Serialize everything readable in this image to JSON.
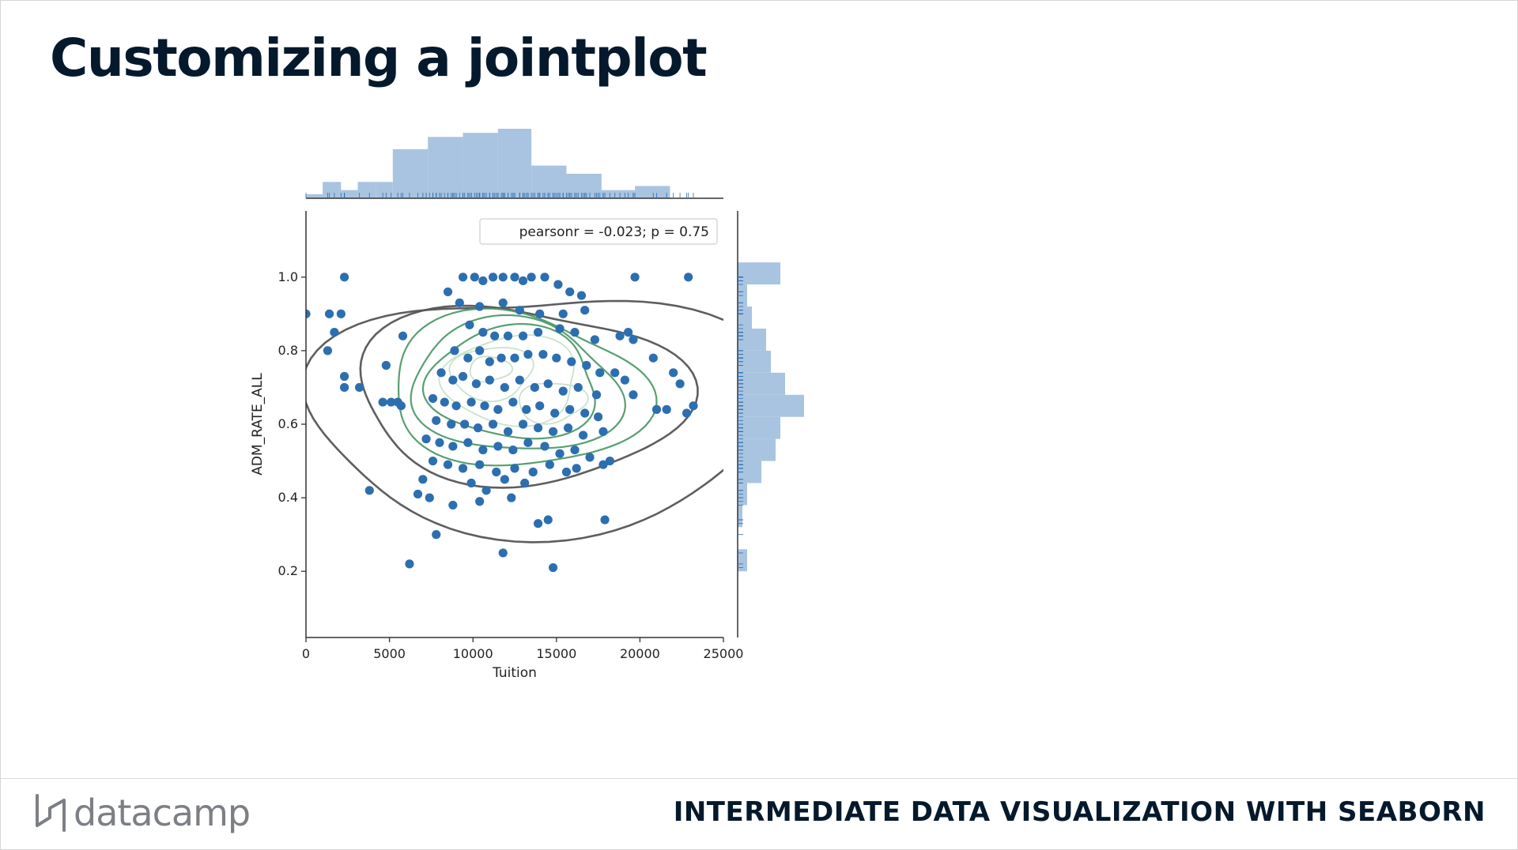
{
  "slide": {
    "title": "Customizing a jointplot",
    "brand": "datacamp",
    "course": "INTERMEDIATE DATA VISUALIZATION WITH SEABORN"
  },
  "colors": {
    "title": "#05192d",
    "point": "#2c6fb0",
    "hist": "#a9c4e0",
    "contour_dark": "#555555",
    "contour_green": "#4f9a68",
    "contour_light": "#c5e2c8",
    "brand_gray": "#7c7f85"
  },
  "chart_data": {
    "type": "scatter",
    "overlay": "kde-contour",
    "marginals": "histogram-with-rug",
    "title": "",
    "xlabel": "Tuition",
    "ylabel": "ADM_RATE_ALL",
    "xlim": [
      0,
      25000
    ],
    "ylim": [
      0.02,
      1.18
    ],
    "xticks": [
      "0",
      "5000",
      "10000",
      "15000",
      "20000",
      "25000"
    ],
    "yticks": [
      "0.2",
      "0.4",
      "0.6",
      "0.8",
      "1.0"
    ],
    "annotation": "pearsonr = -0.023; p = 0.75",
    "points": [
      [
        2300,
        1.0
      ],
      [
        1400,
        0.9
      ],
      [
        2100,
        0.9
      ],
      [
        1700,
        0.85
      ],
      [
        0,
        0.9
      ],
      [
        1300,
        0.8
      ],
      [
        2300,
        0.73
      ],
      [
        2300,
        0.7
      ],
      [
        3200,
        0.7
      ],
      [
        5800,
        0.84
      ],
      [
        4800,
        0.76
      ],
      [
        5100,
        0.66
      ],
      [
        4600,
        0.66
      ],
      [
        5500,
        0.66
      ],
      [
        5700,
        0.65
      ],
      [
        3800,
        0.42
      ],
      [
        6200,
        0.22
      ],
      [
        6700,
        0.41
      ],
      [
        7400,
        0.4
      ],
      [
        7800,
        0.3
      ],
      [
        8800,
        0.38
      ],
      [
        10400,
        0.39
      ],
      [
        11800,
        0.25
      ],
      [
        12300,
        0.4
      ],
      [
        13900,
        0.33
      ],
      [
        14500,
        0.34
      ],
      [
        14800,
        0.21
      ],
      [
        17900,
        0.34
      ],
      [
        19700,
        1.0
      ],
      [
        22900,
        1.0
      ],
      [
        21000,
        0.64
      ],
      [
        21600,
        0.64
      ],
      [
        22800,
        0.63
      ],
      [
        23200,
        0.65
      ],
      [
        22000,
        0.74
      ],
      [
        22400,
        0.71
      ],
      [
        20800,
        0.78
      ],
      [
        19300,
        0.85
      ],
      [
        19600,
        0.83
      ],
      [
        18800,
        0.84
      ],
      [
        18500,
        0.74
      ],
      [
        19100,
        0.72
      ],
      [
        19600,
        0.68
      ],
      [
        18200,
        0.5
      ],
      [
        17800,
        0.49
      ],
      [
        8500,
        0.96
      ],
      [
        9400,
        1.0
      ],
      [
        10100,
        1.0
      ],
      [
        10600,
        0.99
      ],
      [
        11200,
        1.0
      ],
      [
        11800,
        1.0
      ],
      [
        12500,
        1.0
      ],
      [
        13000,
        0.99
      ],
      [
        13500,
        1.0
      ],
      [
        14300,
        1.0
      ],
      [
        15100,
        0.98
      ],
      [
        15800,
        0.96
      ],
      [
        16500,
        0.95
      ],
      [
        9200,
        0.93
      ],
      [
        10400,
        0.92
      ],
      [
        11800,
        0.93
      ],
      [
        12800,
        0.91
      ],
      [
        14000,
        0.9
      ],
      [
        15400,
        0.9
      ],
      [
        16700,
        0.91
      ],
      [
        9800,
        0.87
      ],
      [
        10600,
        0.85
      ],
      [
        11300,
        0.84
      ],
      [
        12100,
        0.84
      ],
      [
        13000,
        0.84
      ],
      [
        13900,
        0.85
      ],
      [
        15200,
        0.86
      ],
      [
        16100,
        0.85
      ],
      [
        17300,
        0.83
      ],
      [
        8900,
        0.8
      ],
      [
        9700,
        0.78
      ],
      [
        10400,
        0.8
      ],
      [
        11000,
        0.77
      ],
      [
        11700,
        0.78
      ],
      [
        12500,
        0.78
      ],
      [
        13300,
        0.79
      ],
      [
        14200,
        0.79
      ],
      [
        15000,
        0.78
      ],
      [
        15900,
        0.77
      ],
      [
        16800,
        0.76
      ],
      [
        17600,
        0.74
      ],
      [
        8100,
        0.74
      ],
      [
        8800,
        0.72
      ],
      [
        9400,
        0.73
      ],
      [
        10200,
        0.71
      ],
      [
        11000,
        0.72
      ],
      [
        11900,
        0.7
      ],
      [
        12800,
        0.72
      ],
      [
        13700,
        0.7
      ],
      [
        14500,
        0.71
      ],
      [
        15400,
        0.69
      ],
      [
        16300,
        0.7
      ],
      [
        17400,
        0.68
      ],
      [
        7600,
        0.67
      ],
      [
        8300,
        0.66
      ],
      [
        9000,
        0.65
      ],
      [
        9900,
        0.66
      ],
      [
        10700,
        0.65
      ],
      [
        11500,
        0.64
      ],
      [
        12400,
        0.66
      ],
      [
        13200,
        0.64
      ],
      [
        14000,
        0.65
      ],
      [
        14900,
        0.63
      ],
      [
        15800,
        0.64
      ],
      [
        16700,
        0.63
      ],
      [
        17500,
        0.62
      ],
      [
        7800,
        0.61
      ],
      [
        8700,
        0.6
      ],
      [
        9500,
        0.6
      ],
      [
        10300,
        0.59
      ],
      [
        11200,
        0.6
      ],
      [
        12100,
        0.58
      ],
      [
        13000,
        0.6
      ],
      [
        13900,
        0.59
      ],
      [
        14800,
        0.58
      ],
      [
        15700,
        0.59
      ],
      [
        16600,
        0.57
      ],
      [
        17800,
        0.58
      ],
      [
        7200,
        0.56
      ],
      [
        8000,
        0.55
      ],
      [
        8800,
        0.54
      ],
      [
        9700,
        0.55
      ],
      [
        10600,
        0.53
      ],
      [
        11500,
        0.54
      ],
      [
        12400,
        0.53
      ],
      [
        13300,
        0.55
      ],
      [
        14300,
        0.54
      ],
      [
        15200,
        0.52
      ],
      [
        16100,
        0.53
      ],
      [
        17000,
        0.51
      ],
      [
        7600,
        0.5
      ],
      [
        8500,
        0.49
      ],
      [
        9400,
        0.48
      ],
      [
        10400,
        0.49
      ],
      [
        11400,
        0.47
      ],
      [
        12500,
        0.48
      ],
      [
        13600,
        0.47
      ],
      [
        14600,
        0.49
      ],
      [
        15600,
        0.47
      ],
      [
        9900,
        0.44
      ],
      [
        11900,
        0.45
      ],
      [
        13100,
        0.44
      ],
      [
        10800,
        0.42
      ],
      [
        7000,
        0.45
      ],
      [
        16200,
        0.48
      ]
    ],
    "contours": [
      {
        "level": "outer",
        "tone": "dark",
        "cx": 13000,
        "cy": 0.66,
        "rx": 13300,
        "ry": 0.34
      },
      {
        "level": "2",
        "tone": "dark",
        "cx": 12800,
        "cy": 0.68,
        "rx": 9500,
        "ry": 0.25
      },
      {
        "level": "3",
        "tone": "mid",
        "cx": 12600,
        "cy": 0.69,
        "rx": 7600,
        "ry": 0.21
      },
      {
        "level": "4",
        "tone": "mid",
        "cx": 12500,
        "cy": 0.7,
        "rx": 6400,
        "ry": 0.175
      },
      {
        "level": "5",
        "tone": "mid",
        "cx": 12400,
        "cy": 0.71,
        "rx": 5300,
        "ry": 0.145
      },
      {
        "level": "6",
        "tone": "light",
        "cx": 12300,
        "cy": 0.72,
        "rx": 4200,
        "ry": 0.115
      },
      {
        "level": "7",
        "tone": "light",
        "cx": 11100,
        "cy": 0.74,
        "rx": 2500,
        "ry": 0.07
      },
      {
        "level": "8",
        "tone": "light",
        "cx": 14700,
        "cy": 0.66,
        "rx": 2000,
        "ry": 0.055
      },
      {
        "level": "9",
        "tone": "light",
        "cx": 11000,
        "cy": 0.75,
        "rx": 1200,
        "ry": 0.035
      }
    ],
    "x_hist": {
      "bins": [
        0,
        1000,
        2100,
        3100,
        4200,
        5200,
        7300,
        9400,
        11500,
        13500,
        15600,
        17700,
        19700,
        21800,
        23800
      ],
      "counts": [
        1,
        4,
        2,
        4,
        4,
        12,
        15,
        16,
        17,
        8,
        6,
        2,
        3,
        0
      ]
    },
    "y_hist": {
      "bins": [
        0.2,
        0.26,
        0.32,
        0.38,
        0.44,
        0.5,
        0.56,
        0.62,
        0.68,
        0.74,
        0.8,
        0.86,
        0.92,
        0.98,
        1.04
      ],
      "counts": [
        2,
        0,
        1,
        2,
        5,
        8,
        9,
        14,
        10,
        7,
        6,
        3,
        2,
        9
      ]
    }
  }
}
